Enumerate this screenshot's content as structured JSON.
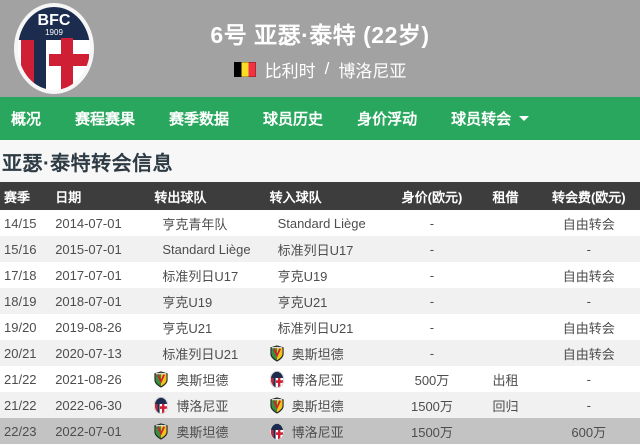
{
  "colors": {
    "header_bg": "#a2a2a2",
    "nav_bg": "#2aa75e",
    "table_head_bg": "#3d3d3d",
    "row_alt_bg": "#f1f1f1",
    "row_highlight_bg": "#c3c3c3",
    "flag_black": "#000000",
    "flag_yellow": "#FDDA24",
    "flag_red": "#EF3340"
  },
  "header": {
    "player_title": "6号 亚瑟·泰特 (22岁)",
    "nationality": "比利时",
    "separator": "/",
    "club": "博洛尼亚",
    "crest_top": "BFC",
    "crest_year": "1909",
    "flag_icon": "belgium-flag",
    "crest_icon": "bologna-crest"
  },
  "nav": {
    "items": [
      {
        "label": "概况"
      },
      {
        "label": "赛程赛果"
      },
      {
        "label": "赛季数据"
      },
      {
        "label": "球员历史"
      },
      {
        "label": "身价浮动"
      },
      {
        "label": "球员转会",
        "has_dropdown": true
      }
    ]
  },
  "section": {
    "title": "亚瑟·泰特转会信息"
  },
  "table": {
    "columns": [
      "赛季",
      "日期",
      "转出球队",
      "转入球队",
      "身价(欧元)",
      "租借",
      "转会费(欧元)"
    ],
    "rows": [
      {
        "season": "14/15",
        "date": "2014-07-01",
        "from": {
          "name": "亨克青年队",
          "logo": ""
        },
        "to": {
          "name": "Standard Liège",
          "logo": ""
        },
        "value": "-",
        "loan": "",
        "fee": "自由转会",
        "highlight": false
      },
      {
        "season": "15/16",
        "date": "2015-07-01",
        "from": {
          "name": "Standard Liège",
          "logo": ""
        },
        "to": {
          "name": "标准列日U17",
          "logo": ""
        },
        "value": "-",
        "loan": "",
        "fee": "-",
        "highlight": false
      },
      {
        "season": "17/18",
        "date": "2017-07-01",
        "from": {
          "name": "标准列日U17",
          "logo": ""
        },
        "to": {
          "name": "亨克U19",
          "logo": ""
        },
        "value": "-",
        "loan": "",
        "fee": "自由转会",
        "highlight": false
      },
      {
        "season": "18/19",
        "date": "2018-07-01",
        "from": {
          "name": "亨克U19",
          "logo": ""
        },
        "to": {
          "name": "亨克U21",
          "logo": ""
        },
        "value": "-",
        "loan": "",
        "fee": "-",
        "highlight": false
      },
      {
        "season": "19/20",
        "date": "2019-08-26",
        "from": {
          "name": "亨克U21",
          "logo": ""
        },
        "to": {
          "name": "标准列日U21",
          "logo": ""
        },
        "value": "-",
        "loan": "",
        "fee": "自由转会",
        "highlight": false
      },
      {
        "season": "20/21",
        "date": "2020-07-13",
        "from": {
          "name": "标准列日U21",
          "logo": ""
        },
        "to": {
          "name": "奥斯坦德",
          "logo": "oostende"
        },
        "value": "-",
        "loan": "",
        "fee": "自由转会",
        "highlight": false
      },
      {
        "season": "21/22",
        "date": "2021-08-26",
        "from": {
          "name": "奥斯坦德",
          "logo": "oostende"
        },
        "to": {
          "name": "博洛尼亚",
          "logo": "bologna"
        },
        "value": "500万",
        "loan": "出租",
        "fee": "-",
        "highlight": false
      },
      {
        "season": "21/22",
        "date": "2022-06-30",
        "from": {
          "name": "博洛尼亚",
          "logo": "bologna"
        },
        "to": {
          "name": "奥斯坦德",
          "logo": "oostende"
        },
        "value": "1500万",
        "loan": "回归",
        "fee": "-",
        "highlight": false
      },
      {
        "season": "22/23",
        "date": "2022-07-01",
        "from": {
          "name": "奥斯坦德",
          "logo": "oostende"
        },
        "to": {
          "name": "博洛尼亚",
          "logo": "bologna"
        },
        "value": "1500万",
        "loan": "",
        "fee": "600万",
        "highlight": true
      }
    ]
  }
}
